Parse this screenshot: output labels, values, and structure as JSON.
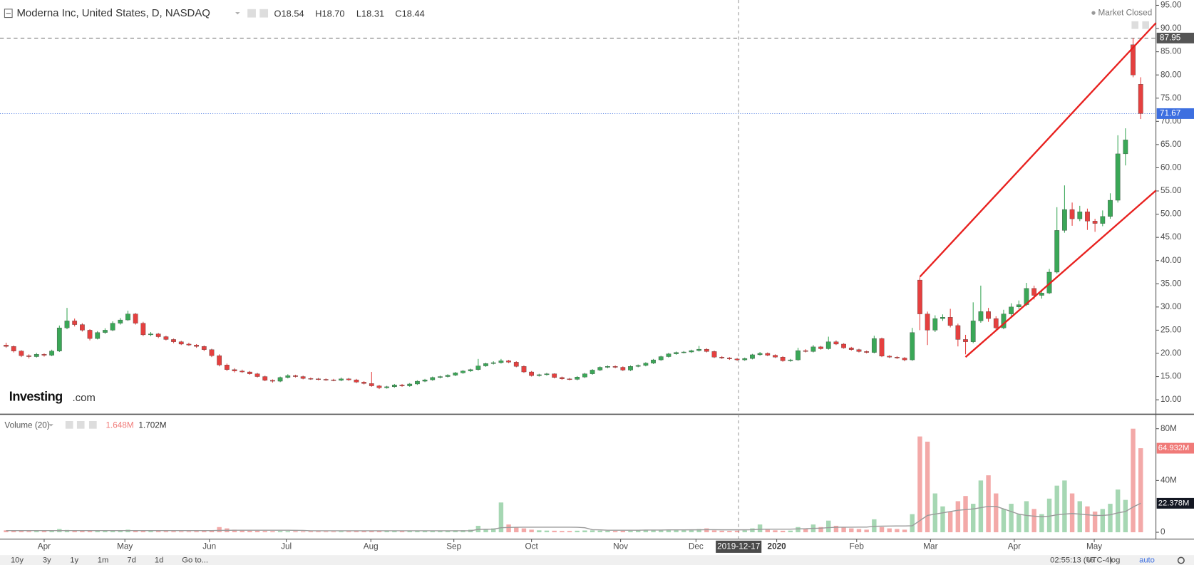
{
  "header": {
    "symbol": "Moderna Inc, United States, D, NASDAQ",
    "ohlc": [
      "O18.54",
      "H18.70",
      "L18.31",
      "C18.44"
    ],
    "status": "Market Closed"
  },
  "logo": {
    "brand": "Investing",
    "suffix": ".com"
  },
  "volume_header": {
    "title": "Volume (20)",
    "value": "1.648M",
    "ma": "1.702M"
  },
  "crosshair_label": "2019-12-17",
  "toolbar": {
    "ranges": [
      "10y",
      "3y",
      "1y",
      "1m",
      "7d",
      "1d"
    ],
    "goto": "Go to...",
    "time": "02:55:13 (UTC-4)",
    "options": [
      "%",
      "log",
      "auto"
    ]
  },
  "chart_data": {
    "type": "candlestick",
    "up_color": "#3aa757",
    "down_color": "#e5403f",
    "xlim": [
      -0.8,
      151
    ],
    "xticks": [
      {
        "value": 5,
        "label": "Apr"
      },
      {
        "value": 15.6,
        "label": "May"
      },
      {
        "value": 26.7,
        "label": "Jun"
      },
      {
        "value": 36.8,
        "label": "Jul"
      },
      {
        "value": 47.9,
        "label": "Aug"
      },
      {
        "value": 58.8,
        "label": "Sep"
      },
      {
        "value": 69,
        "label": "Oct"
      },
      {
        "value": 80.7,
        "label": "Nov"
      },
      {
        "value": 90.6,
        "label": "Dec"
      },
      {
        "value": 101.2,
        "label": "2020",
        "bold": true
      },
      {
        "value": 111.7,
        "label": "Feb"
      },
      {
        "value": 121.4,
        "label": "Mar"
      },
      {
        "value": 132.4,
        "label": "Apr"
      },
      {
        "value": 142.9,
        "label": "May"
      }
    ],
    "ylim": [
      7.05,
      96.15
    ],
    "yticks": [
      {
        "value": 10,
        "label": "10.00"
      },
      {
        "value": 15,
        "label": "15.00"
      },
      {
        "value": 20,
        "label": "20.00"
      },
      {
        "value": 25,
        "label": "25.00"
      },
      {
        "value": 30,
        "label": "30.00"
      },
      {
        "value": 35,
        "label": "35.00"
      },
      {
        "value": 40,
        "label": "40.00"
      },
      {
        "value": 45,
        "label": "45.00"
      },
      {
        "value": 50,
        "label": "50.00"
      },
      {
        "value": 55,
        "label": "55.00"
      },
      {
        "value": 60,
        "label": "60.00"
      },
      {
        "value": 65,
        "label": "65.00"
      },
      {
        "value": 70,
        "label": "70.00"
      },
      {
        "value": 75,
        "label": "75.00"
      },
      {
        "value": 80,
        "label": "80.00"
      },
      {
        "value": 85,
        "label": "85.00"
      },
      {
        "value": 90,
        "label": "90.00"
      },
      {
        "value": 95,
        "label": "95.00"
      }
    ],
    "price_lines": [
      {
        "value": 87.95,
        "label": "87.95",
        "color": "#555555",
        "style": "dashed"
      },
      {
        "value": 71.67,
        "label": "71.67",
        "color": "#3d6fe0",
        "style": "dotted"
      }
    ],
    "trendlines": [
      {
        "from": [
          120,
          36.5
        ],
        "to": [
          151,
          91.2
        ],
        "color": "#e8211f"
      },
      {
        "from": [
          126,
          19.2
        ],
        "to": [
          151,
          55.1
        ],
        "color": "#e8211f"
      }
    ],
    "ohlc": [
      [
        21.8,
        22.3,
        21.2,
        21.5
      ],
      [
        21.5,
        21.7,
        20.2,
        20.5
      ],
      [
        20.5,
        20.7,
        19.2,
        19.5
      ],
      [
        19.5,
        19.8,
        18.9,
        19.3
      ],
      [
        19.3,
        20.1,
        19.1,
        19.8
      ],
      [
        19.8,
        20,
        19.3,
        19.6
      ],
      [
        19.6,
        20.8,
        19.4,
        20.5
      ],
      [
        20.5,
        26,
        20.3,
        25.5
      ],
      [
        25.5,
        29.8,
        25.2,
        27
      ],
      [
        27,
        27.5,
        25.8,
        26.2
      ],
      [
        26.2,
        26.5,
        24.7,
        25
      ],
      [
        25,
        25.2,
        22.8,
        23.2
      ],
      [
        23.2,
        24.8,
        23,
        24.5
      ],
      [
        24.5,
        25.4,
        24.2,
        25
      ],
      [
        25,
        26.9,
        24.8,
        26.5
      ],
      [
        26.5,
        27.6,
        26.2,
        27.2
      ],
      [
        27.2,
        29.2,
        27,
        28.5
      ],
      [
        28.5,
        28.7,
        26.2,
        26.5
      ],
      [
        26.5,
        26.8,
        23.7,
        24
      ],
      [
        24,
        24.6,
        23.7,
        24.2
      ],
      [
        24.2,
        24.4,
        23.3,
        23.6
      ],
      [
        23.6,
        23.8,
        22.8,
        23
      ],
      [
        23,
        23.2,
        22.2,
        22.5
      ],
      [
        22.5,
        22.7,
        21.8,
        22
      ],
      [
        22,
        22.3,
        21.6,
        21.8
      ],
      [
        21.8,
        22,
        21.2,
        21.5
      ],
      [
        21.5,
        21.7,
        20.5,
        20.8
      ],
      [
        20.8,
        21,
        19.2,
        19.5
      ],
      [
        19.5,
        19.8,
        17.2,
        17.5
      ],
      [
        17.5,
        17.8,
        16.2,
        16.5
      ],
      [
        16.5,
        16.8,
        15.9,
        16.2
      ],
      [
        16.2,
        16.5,
        15.8,
        16
      ],
      [
        16,
        16.2,
        15.4,
        15.6
      ],
      [
        15.6,
        15.8,
        14.8,
        15
      ],
      [
        15,
        15.2,
        14,
        14.2
      ],
      [
        14.2,
        14.4,
        13.7,
        14
      ],
      [
        14,
        15,
        13.8,
        14.8
      ],
      [
        14.8,
        15.5,
        14.6,
        15.2
      ],
      [
        15.2,
        15.4,
        14.8,
        15
      ],
      [
        15,
        15.2,
        14.4,
        14.6
      ],
      [
        14.6,
        14.8,
        14.3,
        14.5
      ],
      [
        14.5,
        14.7,
        14.2,
        14.4
      ],
      [
        14.4,
        14.6,
        14.1,
        14.3
      ],
      [
        14.3,
        14.5,
        14,
        14.2
      ],
      [
        14.2,
        14.8,
        14,
        14.5
      ],
      [
        14.5,
        14.7,
        14.1,
        14.3
      ],
      [
        14.3,
        14.5,
        13.6,
        13.8
      ],
      [
        13.8,
        14,
        13.3,
        13.5
      ],
      [
        13.5,
        16,
        12.8,
        13
      ],
      [
        13,
        13.2,
        12.3,
        12.6
      ],
      [
        12.6,
        13,
        12.4,
        12.8
      ],
      [
        12.8,
        13.4,
        12.6,
        13.2
      ],
      [
        13.2,
        13.4,
        12.8,
        13
      ],
      [
        13,
        13.6,
        12.8,
        13.4
      ],
      [
        13.4,
        14.2,
        13.2,
        14
      ],
      [
        14,
        14.5,
        13.8,
        14.3
      ],
      [
        14.3,
        15,
        14.1,
        14.8
      ],
      [
        14.8,
        15.2,
        14.6,
        15
      ],
      [
        15,
        15.5,
        14.8,
        15.3
      ],
      [
        15.3,
        16,
        15.1,
        15.8
      ],
      [
        15.8,
        16.4,
        15.6,
        16.2
      ],
      [
        16.2,
        16.7,
        16,
        16.5
      ],
      [
        16.5,
        18.8,
        16.3,
        17.3
      ],
      [
        17.3,
        18,
        17.1,
        17.8
      ],
      [
        17.8,
        18.3,
        17.6,
        18
      ],
      [
        18,
        18.8,
        17.8,
        18.4
      ],
      [
        18.4,
        18.6,
        17.9,
        18.1
      ],
      [
        18.1,
        18.3,
        17,
        17.2
      ],
      [
        17.2,
        17.4,
        15.8,
        16
      ],
      [
        16,
        16.2,
        15,
        15.2
      ],
      [
        15.2,
        15.6,
        15,
        15.4
      ],
      [
        15.4,
        15.8,
        15.2,
        15.6
      ],
      [
        15.6,
        15.7,
        14.6,
        14.8
      ],
      [
        14.8,
        15,
        14.3,
        14.5
      ],
      [
        14.5,
        14.7,
        14.2,
        14.4
      ],
      [
        14.4,
        15.1,
        14.2,
        14.9
      ],
      [
        14.9,
        15.8,
        14.7,
        15.6
      ],
      [
        15.6,
        16.6,
        15.4,
        16.4
      ],
      [
        16.4,
        17.2,
        16.2,
        17
      ],
      [
        17,
        17.4,
        16.8,
        17.2
      ],
      [
        17.2,
        17.4,
        16.8,
        17
      ],
      [
        17,
        17.2,
        16.2,
        16.4
      ],
      [
        16.4,
        17.4,
        16.2,
        17.2
      ],
      [
        17.2,
        17.6,
        17,
        17.4
      ],
      [
        17.4,
        18.1,
        17.2,
        17.9
      ],
      [
        17.9,
        18.8,
        17.7,
        18.6
      ],
      [
        18.6,
        19.5,
        18.4,
        19.3
      ],
      [
        19.3,
        20.1,
        19.1,
        19.9
      ],
      [
        19.9,
        20.4,
        19.7,
        20.2
      ],
      [
        20.2,
        20.5,
        20,
        20.3
      ],
      [
        20.3,
        20.8,
        20.1,
        20.6
      ],
      [
        20.6,
        21.6,
        20.4,
        20.9
      ],
      [
        20.9,
        21.1,
        20.2,
        20.4
      ],
      [
        20.4,
        20.6,
        19,
        19.2
      ],
      [
        19.2,
        19.4,
        18.8,
        19
      ],
      [
        19,
        19.2,
        18.6,
        18.8
      ],
      [
        18.8,
        19,
        18.4,
        18.6
      ],
      [
        18.6,
        19.1,
        18.4,
        18.9
      ],
      [
        18.9,
        19.9,
        18.7,
        19.7
      ],
      [
        19.7,
        20.3,
        19.5,
        20
      ],
      [
        20,
        20.2,
        19.4,
        19.6
      ],
      [
        19.6,
        19.8,
        19,
        19.2
      ],
      [
        19.2,
        19.4,
        18.2,
        18.4
      ],
      [
        18.4,
        18.8,
        18.2,
        18.6
      ],
      [
        18.6,
        21.2,
        18.4,
        20.6
      ],
      [
        20.6,
        20.9,
        20.2,
        20.4
      ],
      [
        20.4,
        21.8,
        20.2,
        21.4
      ],
      [
        21.4,
        21.6,
        20.8,
        21
      ],
      [
        21,
        23.6,
        20.8,
        22.5
      ],
      [
        22.5,
        22.8,
        21.8,
        22
      ],
      [
        22,
        22.2,
        21,
        21.2
      ],
      [
        21.2,
        21.4,
        20.6,
        20.8
      ],
      [
        20.8,
        21,
        20.2,
        20.4
      ],
      [
        20.4,
        20.6,
        20,
        20.2
      ],
      [
        20.2,
        23.8,
        20,
        23.2
      ],
      [
        23.2,
        23.4,
        19.2,
        19.4
      ],
      [
        19.4,
        19.6,
        19,
        19.2
      ],
      [
        19.2,
        19.4,
        18.8,
        19
      ],
      [
        19,
        19.2,
        18.3,
        18.6
      ],
      [
        18.6,
        25.5,
        18.4,
        24.5
      ],
      [
        35.8,
        36.4,
        25,
        28.5
      ],
      [
        28.5,
        29,
        21.8,
        25
      ],
      [
        25,
        28.2,
        24.6,
        27.5
      ],
      [
        27.5,
        28.4,
        27,
        27.8
      ],
      [
        27.8,
        29.6,
        25.6,
        26
      ],
      [
        26,
        26.4,
        21.5,
        23
      ],
      [
        23,
        24,
        19.8,
        22.5
      ],
      [
        22.5,
        31,
        22.2,
        27
      ],
      [
        27,
        34.6,
        26.6,
        29
      ],
      [
        29,
        29.8,
        26.8,
        27.5
      ],
      [
        27.5,
        28,
        24.8,
        25.5
      ],
      [
        25.5,
        29.4,
        25.2,
        28.5
      ],
      [
        28.5,
        30.8,
        28,
        30
      ],
      [
        30,
        31.4,
        29.6,
        30.5
      ],
      [
        30.5,
        35.2,
        30.2,
        34
      ],
      [
        34,
        34.6,
        31.6,
        32.5
      ],
      [
        32.5,
        33.6,
        31.8,
        33
      ],
      [
        33,
        38.2,
        32.8,
        37.5
      ],
      [
        37.5,
        51.5,
        37.2,
        46.5
      ],
      [
        46.5,
        56.2,
        46,
        51
      ],
      [
        51,
        52.5,
        47.5,
        49
      ],
      [
        49,
        51.8,
        48.5,
        50.5
      ],
      [
        50.5,
        51.2,
        46.6,
        48.5
      ],
      [
        48.5,
        49,
        46.2,
        48
      ],
      [
        48,
        50.8,
        47.4,
        49.5
      ],
      [
        49.5,
        54.5,
        49,
        53
      ],
      [
        53,
        67,
        52.5,
        63
      ],
      [
        63,
        68.5,
        60.5,
        66
      ],
      [
        86.5,
        87.95,
        79.5,
        80
      ],
      [
        78,
        79.5,
        70.5,
        71.67
      ]
    ],
    "volume": {
      "ylim": [
        -5.29,
        90.59
      ],
      "yticks": [
        0,
        {
          "value": 40,
          "label": "40M"
        },
        {
          "value": 80,
          "label": "80M"
        }
      ],
      "tags": [
        {
          "value": 64.932,
          "label": "64.932M",
          "color": "#f07a78"
        },
        {
          "value": 22.378,
          "label": "22.378M",
          "color": "#131722"
        }
      ],
      "ma_color": "#9a9a9a",
      "values": [
        1.5,
        1.2,
        1,
        0.8,
        0.9,
        1,
        1.2,
        2.5,
        1.8,
        1.5,
        1.2,
        1,
        1,
        1.1,
        1.3,
        1.5,
        2,
        1.4,
        1.2,
        1,
        0.9,
        0.8,
        0.8,
        0.7,
        0.7,
        0.8,
        1,
        1.5,
        4,
        3,
        2,
        1.5,
        1.2,
        1.2,
        1,
        0.9,
        1,
        0.9,
        0.8,
        0.7,
        0.7,
        0.7,
        0.6,
        0.6,
        0.7,
        0.7,
        0.8,
        0.9,
        1,
        1.3,
        1,
        0.9,
        0.8,
        0.9,
        1,
        1,
        1.2,
        1.1,
        1.3,
        1.5,
        1.6,
        2,
        5,
        2,
        3,
        23,
        6,
        4,
        3,
        2,
        1.5,
        1.3,
        1.2,
        1,
        1,
        1.2,
        1.4,
        1.5,
        1.3,
        1.2,
        1,
        1.2,
        1.2,
        1.4,
        1.5,
        1.6,
        1.8,
        2,
        2.2,
        1.8,
        2,
        2.5,
        3,
        1.5,
        1.2,
        1.1,
        1.2,
        1.5,
        3,
        6,
        2,
        1.5,
        1.2,
        1.3,
        4,
        3,
        6,
        4,
        9,
        5,
        4,
        3,
        2.5,
        2,
        10,
        4,
        3,
        2.5,
        2,
        14,
        74,
        70,
        30,
        20,
        16,
        24,
        28,
        22,
        40,
        44,
        30,
        18,
        22,
        14,
        24,
        18,
        14,
        26,
        36,
        40,
        30,
        24,
        20,
        16,
        18,
        22,
        33,
        25,
        80,
        64.932
      ],
      "ma": [
        1.3,
        1.3,
        1.3,
        1.3,
        1.3,
        1.3,
        1.3,
        1.3,
        1.3,
        1.3,
        1.3,
        1.3,
        1.3,
        1.3,
        1.3,
        1.3,
        1.3,
        1.3,
        1.3,
        1.3,
        1.3,
        1.3,
        1.3,
        1.3,
        1.3,
        1.3,
        1.3,
        1.3,
        1.4,
        1.5,
        1.6,
        1.6,
        1.6,
        1.6,
        1.6,
        1.6,
        1.6,
        1.6,
        1.5,
        1.4,
        1.2,
        1.2,
        1.2,
        1.2,
        1.2,
        1.2,
        1.2,
        1.2,
        1.2,
        1.2,
        1.2,
        1.2,
        1.2,
        1.2,
        1.2,
        1.2,
        1.2,
        1.2,
        1.2,
        1.2,
        1.2,
        1.2,
        2.2,
        2.3,
        2.4,
        3.5,
        3.7,
        3.8,
        3.9,
        3.9,
        3.9,
        3.9,
        3.9,
        3.9,
        3.9,
        3.8,
        3.5,
        2,
        1.8,
        1.6,
        1.6,
        1.6,
        1.6,
        1.6,
        1.7,
        1.7,
        1.7,
        1.8,
        1.8,
        1.8,
        1.9,
        1.9,
        2,
        2,
        1.9,
        1.9,
        1.9,
        1.9,
        2,
        2.3,
        2.4,
        2.4,
        2.4,
        2.4,
        2.6,
        2.7,
        3,
        3.2,
        3.6,
        3.8,
        3.9,
        3.9,
        4,
        4,
        4.6,
        4.7,
        4.8,
        4.9,
        4.9,
        5,
        9,
        13,
        14,
        15,
        16,
        17,
        17.5,
        18,
        19,
        20,
        20,
        18,
        16,
        14,
        13,
        12.5,
        12,
        12.5,
        13.5,
        14,
        14.5,
        14,
        13.5,
        13,
        13,
        13.5,
        15,
        16,
        19.5,
        22.378
      ]
    }
  }
}
